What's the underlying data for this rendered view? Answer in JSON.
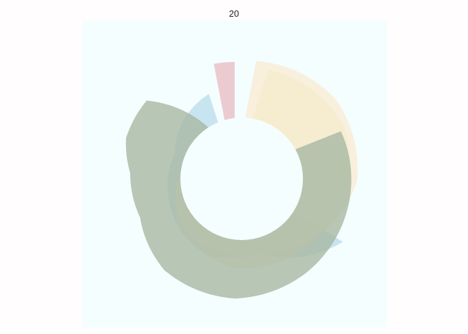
{
  "chart_data": {
    "type": "area",
    "coordinate_system": "polar",
    "title": "20",
    "panel_background": "#f4feff",
    "grid": false,
    "axes_visible": false,
    "series": [
      {
        "fill": "#b5d9ea",
        "opacity": 0.7,
        "points": [
          [
            0.34,
            0.92
          ],
          [
            0.45,
            0.6
          ],
          [
            0.55,
            0.62
          ],
          [
            0.7,
            0.5
          ],
          [
            0.8,
            0.45
          ],
          [
            0.9,
            0.55
          ],
          [
            0.95,
            0.6
          ]
        ]
      },
      {
        "fill": "#e9f3c4",
        "opacity": 0.6,
        "points": [
          [
            0.05,
            0.78
          ],
          [
            0.18,
            0.85
          ],
          [
            0.3,
            0.82
          ],
          [
            0.45,
            0.6
          ],
          [
            0.6,
            0.55
          ],
          [
            0.75,
            0.4
          ],
          [
            0.85,
            0.3
          ],
          [
            0.92,
            0.25
          ]
        ]
      },
      {
        "fill": "#fbe6cb",
        "opacity": 0.65,
        "points": [
          [
            0.03,
            0.82
          ],
          [
            0.15,
            0.9
          ],
          [
            0.26,
            0.88
          ],
          [
            0.35,
            0.75
          ],
          [
            0.5,
            0.68
          ],
          [
            0.62,
            0.55
          ],
          [
            0.72,
            0.42
          ],
          [
            0.78,
            0.32
          ],
          [
            0.85,
            0.2
          ]
        ]
      },
      {
        "fill": "#a8b8a3",
        "opacity": 0.8,
        "points": [
          [
            0.19,
            0.82
          ],
          [
            0.3,
            0.85
          ],
          [
            0.4,
            0.88
          ],
          [
            0.5,
            0.9
          ],
          [
            0.6,
            0.86
          ],
          [
            0.68,
            0.75
          ],
          [
            0.75,
            0.75
          ],
          [
            0.8,
            0.82
          ],
          [
            0.86,
            0.82
          ],
          [
            0.94,
            0.2
          ],
          [
            0.96,
            0.1
          ]
        ]
      },
      {
        "fill": "#e9b9c0",
        "opacity": 0.75,
        "points": [
          [
            0.97,
            0.8
          ],
          [
            0.99,
            0.8
          ],
          [
            1.0,
            0.8
          ]
        ]
      }
    ]
  }
}
